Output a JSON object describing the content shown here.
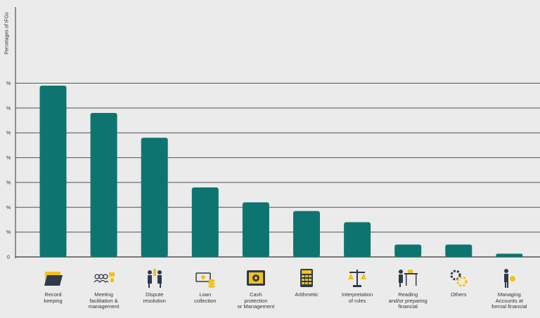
{
  "chart_data": {
    "type": "bar",
    "ylabel": "Percetages of IFGs",
    "ytick_labels": [
      "0",
      "%",
      "%",
      "%",
      "%",
      "%",
      "%",
      "%"
    ],
    "ylim": [
      0,
      7
    ],
    "grid": true,
    "bar_color": "#0e7470",
    "categories": [
      "Record keeping",
      "Meeting facilitation & management",
      "Dispute resolution",
      "Loan collection",
      "Cash protection or Management",
      "Arithmetic",
      "Interpretation of rules",
      "Reading and/or preparing financial",
      "Others",
      "Managing Accounts at formal financial"
    ],
    "values": [
      6.9,
      5.8,
      4.8,
      2.8,
      2.2,
      1.85,
      1.4,
      0.5,
      0.5,
      0.13
    ]
  },
  "icons": [
    "folder-icon",
    "meeting-group-icon",
    "dispute-handshake-icon",
    "money-coins-icon",
    "safe-icon",
    "calculator-icon",
    "scales-icon",
    "teacher-board-icon",
    "gears-icon",
    "person-coin-icon"
  ],
  "colors": {
    "accent": "#f2c21b",
    "dark": "#2f3a4a"
  }
}
